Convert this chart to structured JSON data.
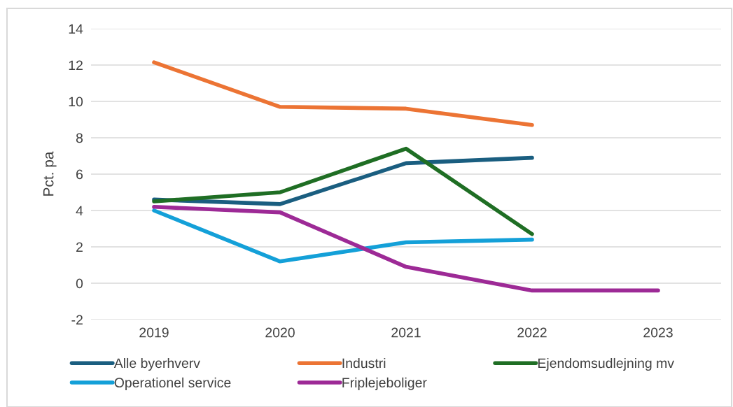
{
  "chart_data": {
    "type": "line",
    "ylabel": "Pct. pa",
    "categories": [
      "2019",
      "2020",
      "2021",
      "2022",
      "2023"
    ],
    "series": [
      {
        "name": "Alle byerhverv",
        "color": "#1a5e80",
        "values": [
          4.6,
          4.35,
          6.6,
          6.9,
          null
        ]
      },
      {
        "name": "Industri",
        "color": "#ec7434",
        "values": [
          12.15,
          9.7,
          9.6,
          8.7,
          null
        ]
      },
      {
        "name": "Ejendomsudlejning mv",
        "color": "#1f6e24",
        "values": [
          4.5,
          5.0,
          7.4,
          2.7,
          null
        ]
      },
      {
        "name": "Operationel service",
        "color": "#14a0d8",
        "values": [
          4.0,
          1.2,
          2.25,
          2.4,
          null
        ]
      },
      {
        "name": "Friplejeboliger",
        "color": "#9d2a96",
        "values": [
          4.2,
          3.9,
          0.9,
          -0.4,
          -0.4
        ]
      }
    ],
    "ylim": [
      -2,
      14
    ],
    "yticks": [
      -2,
      0,
      2,
      4,
      6,
      8,
      10,
      12,
      14
    ],
    "grid": "y",
    "legend": "bottom",
    "line_style": "solid",
    "marker": "none"
  }
}
